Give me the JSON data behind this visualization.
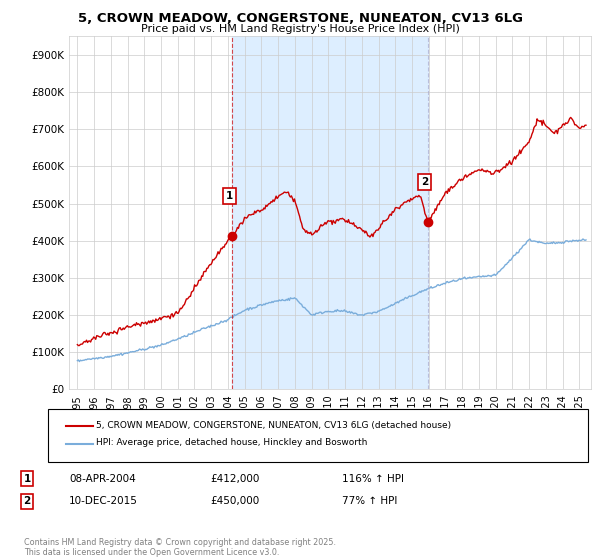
{
  "title_line1": "5, CROWN MEADOW, CONGERSTONE, NUNEATON, CV13 6LG",
  "title_line2": "Price paid vs. HM Land Registry's House Price Index (HPI)",
  "background_color": "#ffffff",
  "plot_background_color": "#ffffff",
  "ylim": [
    0,
    950000
  ],
  "yticks": [
    0,
    100000,
    200000,
    300000,
    400000,
    500000,
    600000,
    700000,
    800000,
    900000
  ],
  "ytick_labels": [
    "£0",
    "£100K",
    "£200K",
    "£300K",
    "£400K",
    "£500K",
    "£600K",
    "£700K",
    "£800K",
    "£900K"
  ],
  "xlim_start": 1994.5,
  "xlim_end": 2025.7,
  "xticks": [
    1995,
    1996,
    1997,
    1998,
    1999,
    2000,
    2001,
    2002,
    2003,
    2004,
    2005,
    2006,
    2007,
    2008,
    2009,
    2010,
    2011,
    2012,
    2013,
    2014,
    2015,
    2016,
    2017,
    2018,
    2019,
    2020,
    2021,
    2022,
    2023,
    2024,
    2025
  ],
  "sale1_x": 2004.27,
  "sale1_y": 412000,
  "sale1_label": "1",
  "sale1_date": "08-APR-2004",
  "sale1_price": "£412,000",
  "sale1_hpi": "116% ↑ HPI",
  "sale2_x": 2015.94,
  "sale2_y": 450000,
  "sale2_label": "2",
  "sale2_date": "10-DEC-2015",
  "sale2_price": "£450,000",
  "sale2_hpi": "77% ↑ HPI",
  "red_line_color": "#cc0000",
  "blue_line_color": "#7aaddb",
  "vline1_color": "#cc0000",
  "vline2_color": "#aaaacc",
  "shade_color": "#ddeeff",
  "marker_color": "#cc0000",
  "legend_label_red": "5, CROWN MEADOW, CONGERSTONE, NUNEATON, CV13 6LG (detached house)",
  "legend_label_blue": "HPI: Average price, detached house, Hinckley and Bosworth",
  "footer_text": "Contains HM Land Registry data © Crown copyright and database right 2025.\nThis data is licensed under the Open Government Licence v3.0."
}
